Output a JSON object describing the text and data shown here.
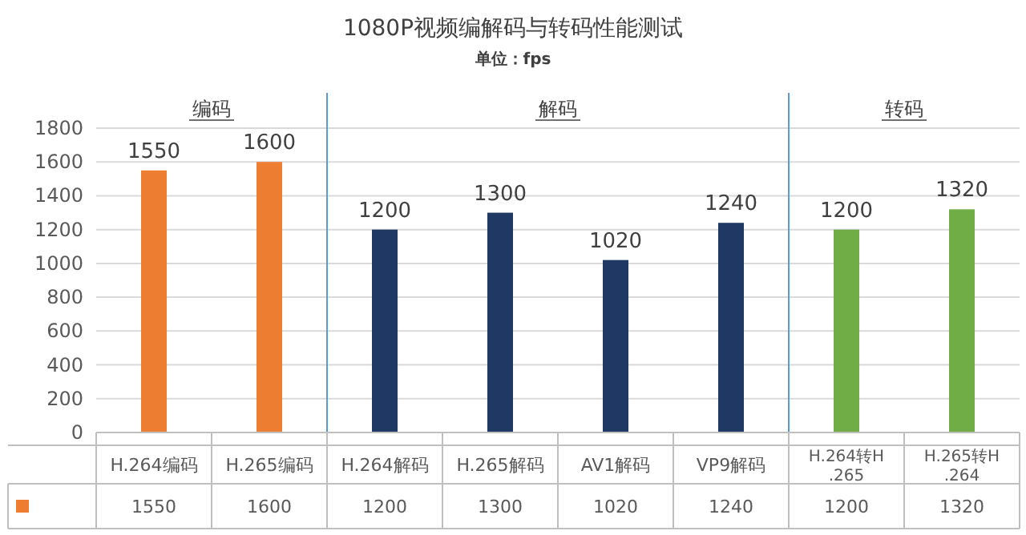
{
  "chart_data": {
    "type": "bar",
    "title": "1080P视频编解码与转码性能测试",
    "subtitle": "单位：fps",
    "categories": [
      "H.264编码",
      "H.265编码",
      "H.264解码",
      "H.265解码",
      "AV1解码",
      "VP9解码",
      "H.264转H.265",
      "H.265转H.264"
    ],
    "series": [
      {
        "values": [
          1550,
          1600,
          1200,
          1300,
          1020,
          1240,
          1200,
          1320
        ],
        "value_labels": [
          "1550",
          "1600",
          "1200",
          "1300",
          "1020",
          "1240",
          "1200",
          "1320"
        ],
        "colors": [
          "#ed7d31",
          "#ed7d31",
          "#1f3864",
          "#1f3864",
          "#1f3864",
          "#1f3864",
          "#70ad47",
          "#70ad47"
        ]
      }
    ],
    "ylim": [
      0,
      1800
    ],
    "yticks": [
      0,
      200,
      400,
      600,
      800,
      1000,
      1200,
      1400,
      1600,
      1800
    ],
    "grid": "y",
    "data_labels": true,
    "annotations": [
      "编码",
      "解码",
      "转码"
    ]
  }
}
